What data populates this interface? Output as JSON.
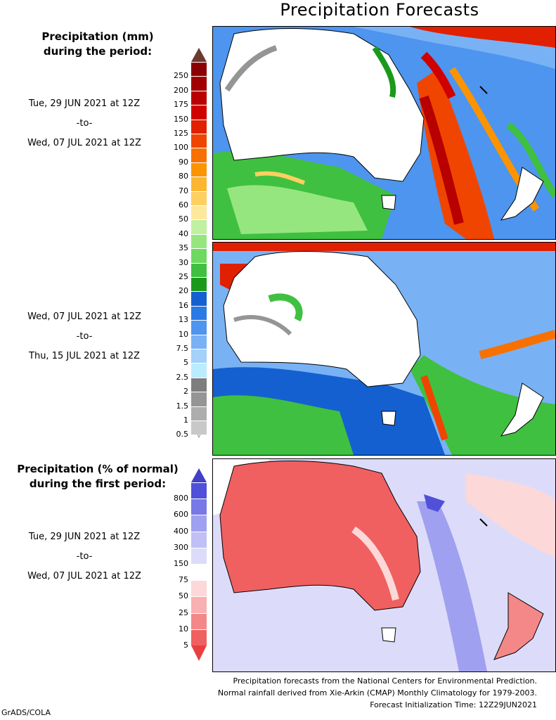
{
  "title": "Precipitation Forecasts",
  "legend_mm": {
    "heading_line1": "Precipitation (mm)",
    "heading_line2": "during the period:",
    "ticks": [
      "250",
      "200",
      "175",
      "150",
      "125",
      "100",
      "90",
      "80",
      "70",
      "60",
      "50",
      "40",
      "35",
      "30",
      "25",
      "20",
      "16",
      "13",
      "10",
      "7.5",
      "5",
      "2.5",
      "2",
      "1.5",
      "1",
      "0.5"
    ],
    "colors": [
      "#8b0000",
      "#a10000",
      "#b80000",
      "#d00000",
      "#e02000",
      "#f04500",
      "#f87000",
      "#fb9400",
      "#fcb730",
      "#fdd060",
      "#fee89a",
      "#c0f0a0",
      "#96e680",
      "#6ed960",
      "#40c040",
      "#1a9a1a",
      "#1560d0",
      "#2a7ae6",
      "#4d95ee",
      "#78b2f4",
      "#a4d0fa",
      "#b9ecfd",
      "#7e7e7e",
      "#959595",
      "#adadad",
      "#c8c8c8"
    ]
  },
  "legend_pct": {
    "heading_line1": "Precipitation (% of normal)",
    "heading_line2": "during the first period:",
    "ticks": [
      "800",
      "600",
      "400",
      "300",
      "150",
      "75",
      "50",
      "25",
      "10",
      "5"
    ],
    "colors": [
      "#5050d8",
      "#7878e6",
      "#a0a0f0",
      "#c0c0f6",
      "#dcdcfa",
      "#ffffff",
      "#fcd8d8",
      "#f8b0b0",
      "#f48888",
      "#f06060"
    ]
  },
  "periods": [
    {
      "start": "Tue, 29 JUN 2021 at 12Z",
      "sep": "-to-",
      "end": "Wed, 07 JUL 2021 at 12Z"
    },
    {
      "start": "Wed, 07 JUL 2021 at 12Z",
      "sep": "-to-",
      "end": "Thu, 15 JUL 2021 at 12Z"
    },
    {
      "start": "Tue, 29 JUN 2021 at 12Z",
      "sep": "-to-",
      "end": "Wed, 07 JUL 2021 at 12Z"
    }
  ],
  "footer": {
    "line1": "Precipitation forecasts from the National Centers for Environmental Prediction.",
    "line2": "Normal rainfall derived from Xie-Arkin (CMAP) Monthly Climatology for 1979-2003.",
    "line3": "Forecast Initialization Time: 12Z29JUN2021"
  },
  "credit": "GrADS/COLA"
}
